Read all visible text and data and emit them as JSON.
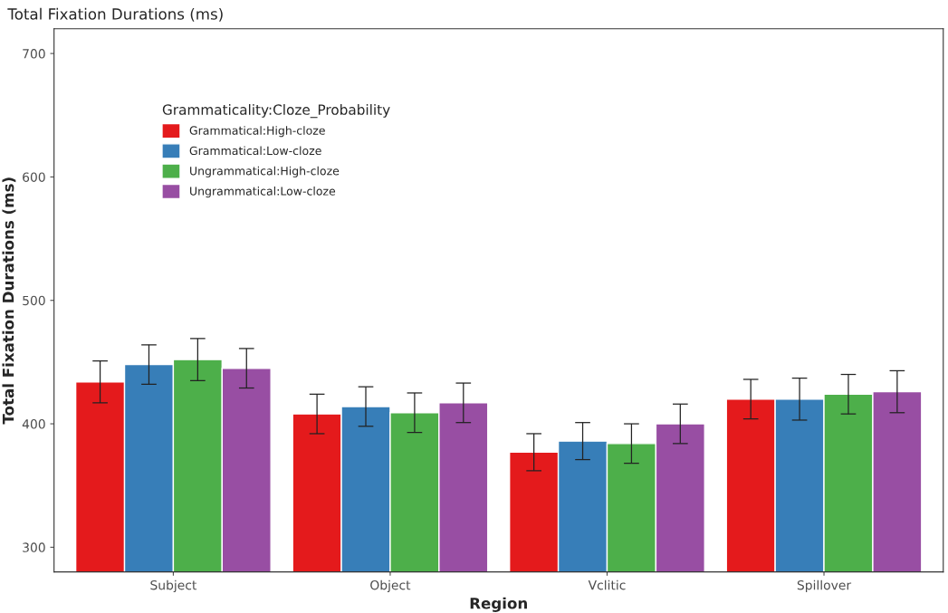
{
  "chart_data": {
    "type": "bar",
    "title": "Total Fixation Durations (ms)",
    "xlabel": "Region",
    "ylabel": "Total Fixation Durations (ms)",
    "legend_title": "Grammaticality:Cloze_Probability",
    "categories": [
      "Subject",
      "Object",
      "Vclitic",
      "Spillover"
    ],
    "series": [
      {
        "name": "Grammatical:High-cloze",
        "color": "#e41a1c",
        "values": [
          434,
          408,
          377,
          420
        ],
        "errors": [
          17,
          16,
          15,
          16
        ]
      },
      {
        "name": "Grammatical:Low-cloze",
        "color": "#377eb8",
        "values": [
          448,
          414,
          386,
          420
        ],
        "errors": [
          16,
          16,
          15,
          17
        ]
      },
      {
        "name": "Ungrammatical:High-cloze",
        "color": "#4daf4a",
        "values": [
          452,
          409,
          384,
          424
        ],
        "errors": [
          17,
          16,
          16,
          16
        ]
      },
      {
        "name": "Ungrammatical:Low-cloze",
        "color": "#984ea3",
        "values": [
          445,
          417,
          400,
          426
        ],
        "errors": [
          16,
          16,
          16,
          17
        ]
      }
    ],
    "ylim": [
      280,
      720
    ],
    "yticks": [
      300,
      400,
      500,
      600,
      700
    ],
    "grid": false,
    "legend": "top left"
  }
}
